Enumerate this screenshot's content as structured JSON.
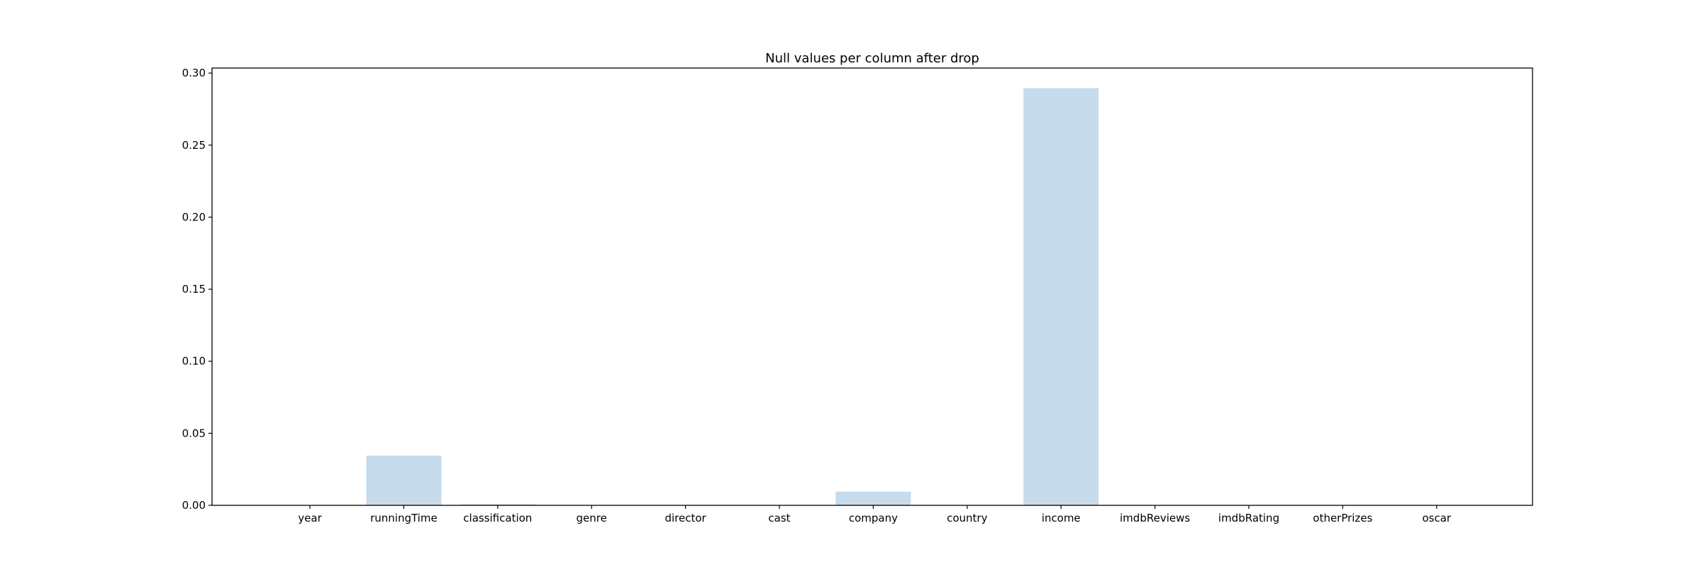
{
  "chart_data": {
    "type": "bar",
    "title": "Null values per column after drop",
    "xlabel": "",
    "ylabel": "",
    "categories": [
      "year",
      "runningTime",
      "classification",
      "genre",
      "director",
      "cast",
      "company",
      "country",
      "income",
      "imdbReviews",
      "imdbRating",
      "otherPrizes",
      "oscar"
    ],
    "values": [
      0.0,
      0.0345,
      0.0008,
      0.0,
      0.0,
      0.0,
      0.0095,
      0.0,
      0.2895,
      0.0,
      0.0,
      0.0,
      0.0
    ],
    "ylim": [
      0,
      0.3035
    ],
    "yticks": [
      "0.00",
      "0.05",
      "0.10",
      "0.15",
      "0.20",
      "0.25",
      "0.30"
    ],
    "bar_color": "#c6dbec",
    "grid": false,
    "legend": "none"
  }
}
